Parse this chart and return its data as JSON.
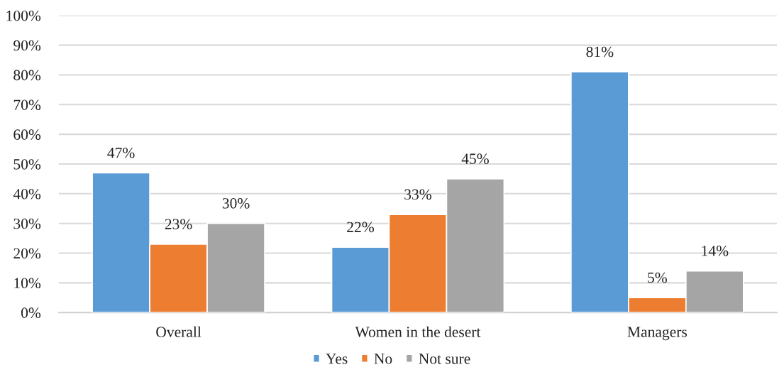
{
  "chart_data": {
    "type": "bar",
    "categories": [
      "Overall",
      "Women in the desert",
      "Managers"
    ],
    "series": [
      {
        "name": "Yes",
        "color": "#5b9bd5",
        "values": [
          47,
          22,
          81
        ],
        "value_labels": [
          "47%",
          "22%",
          "81%"
        ]
      },
      {
        "name": "No",
        "color": "#ed7d31",
        "values": [
          23,
          33,
          5
        ],
        "value_labels": [
          "23%",
          "33%",
          "5%"
        ]
      },
      {
        "name": "Not sure",
        "color": "#a5a5a5",
        "values": [
          30,
          45,
          14
        ],
        "value_labels": [
          "30%",
          "45%",
          "14%"
        ]
      }
    ],
    "ylim": [
      0,
      100
    ],
    "yticks": [
      {
        "value": 0,
        "label": "0%"
      },
      {
        "value": 10,
        "label": "10%"
      },
      {
        "value": 20,
        "label": "20%"
      },
      {
        "value": 30,
        "label": "30%"
      },
      {
        "value": 40,
        "label": "40%"
      },
      {
        "value": 50,
        "label": "50%"
      },
      {
        "value": 60,
        "label": "60%"
      },
      {
        "value": 70,
        "label": "70%"
      },
      {
        "value": 80,
        "label": "80%"
      },
      {
        "value": 90,
        "label": "90%"
      },
      {
        "value": 100,
        "label": "100%"
      }
    ],
    "grid": "y",
    "legend": "bottom"
  }
}
